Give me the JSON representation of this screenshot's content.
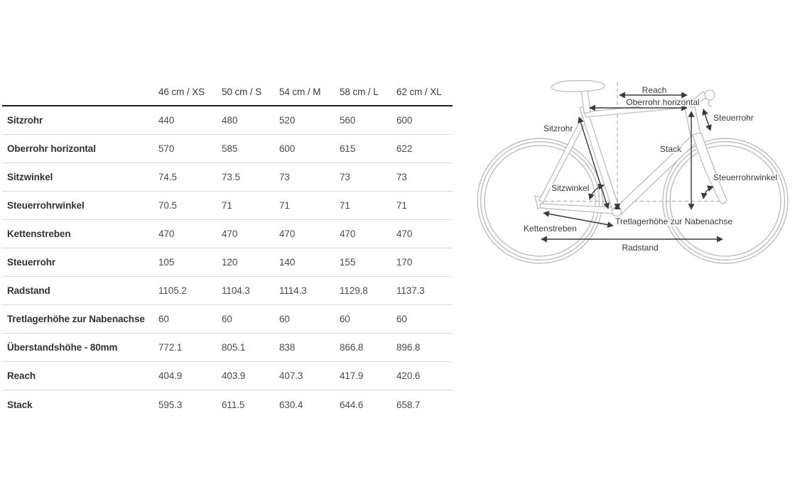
{
  "table": {
    "header": {
      "sizes": [
        "46 cm / XS",
        "50 cm / S",
        "54 cm / M",
        "58 cm / L",
        "62 cm / XL"
      ]
    },
    "rows": [
      {
        "label": "Sitzrohr",
        "values": [
          "440",
          "480",
          "520",
          "560",
          "600"
        ]
      },
      {
        "label": "Oberrohr horizontal",
        "values": [
          "570",
          "585",
          "600",
          "615",
          "622"
        ]
      },
      {
        "label": "Sitzwinkel",
        "values": [
          "74.5",
          "73.5",
          "73",
          "73",
          "73"
        ]
      },
      {
        "label": "Steuerrohrwinkel",
        "values": [
          "70.5",
          "71",
          "71",
          "71",
          "71"
        ]
      },
      {
        "label": "Kettenstreben",
        "values": [
          "470",
          "470",
          "470",
          "470",
          "470"
        ]
      },
      {
        "label": "Steuerrohr",
        "values": [
          "105",
          "120",
          "140",
          "155",
          "170"
        ]
      },
      {
        "label": "Radstand",
        "values": [
          "1105.2",
          "1104.3",
          "1114.3",
          "1129.8",
          "1137.3"
        ]
      },
      {
        "label": "Tretlagerhöhe zur Nabenachse",
        "values": [
          "60",
          "60",
          "60",
          "60",
          "60"
        ]
      },
      {
        "label": "Überstandshöhe - 80mm",
        "values": [
          "772.1",
          "805.1",
          "838",
          "866.8",
          "896.8"
        ]
      },
      {
        "label": "Reach",
        "values": [
          "404.9",
          "403.9",
          "407.3",
          "417.9",
          "420.6"
        ]
      },
      {
        "label": "Stack",
        "values": [
          "595.3",
          "611.5",
          "630.4",
          "644.6",
          "658.7"
        ]
      }
    ]
  },
  "diagram": {
    "labels": {
      "reach": "Reach",
      "oberrohr": "Oberrohr horizontal",
      "steuerrohr": "Steuerrohr",
      "sitzrohr": "Sitzrohr",
      "stack": "Stack",
      "steuerrohrwinkel": "Steuerrohrwinkel",
      "sitzwinkel": "Sitzwinkel",
      "tretlagerhoehe": "Tretlagerhöhe zur Nabenachse",
      "kettenstreben": "Kettenstreben",
      "radstand": "Radstand"
    },
    "colors": {
      "sketch_line": "#bdbdbd",
      "annotation": "#3a3a3a",
      "table_header_border": "#1f1f1f",
      "row_divider": "#d9d9d9",
      "label_text": "#323231",
      "value_text": "#4c4c4c"
    }
  }
}
